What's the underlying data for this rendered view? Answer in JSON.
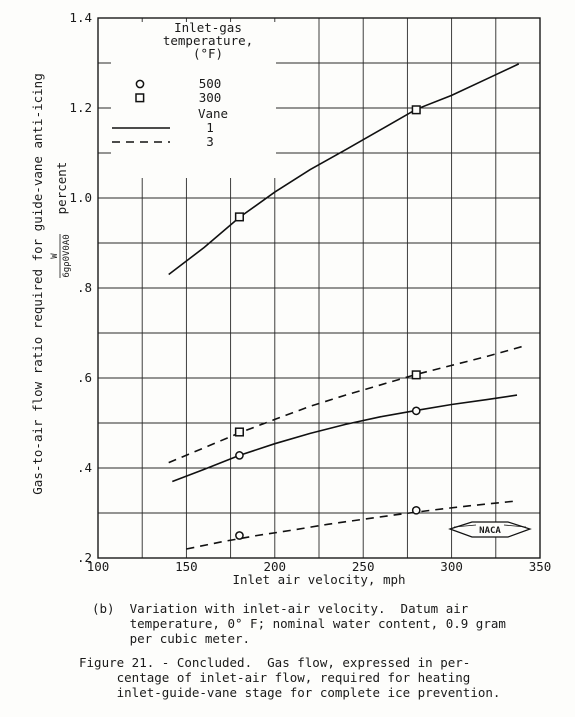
{
  "chart_data": {
    "type": "line",
    "xlabel": "Inlet air velocity, mph",
    "ylabel": "Gas-to-air flow ratio required for guide-vane anti-icing",
    "ylabel_formula": "W/(6gρ0V0A0)",
    "ylabel_unit": "percent",
    "xlim": [
      100,
      350
    ],
    "ylim": [
      0.2,
      1.4
    ],
    "x_ticks": [
      100,
      150,
      200,
      250,
      300,
      350
    ],
    "x_tick_labels": [
      "100",
      "150",
      "200",
      "250",
      "300",
      "350"
    ],
    "y_ticks": [
      0.2,
      0.4,
      0.6,
      0.8,
      1.0,
      1.2,
      1.4
    ],
    "y_tick_labels": [
      ".2",
      ".4",
      ".6",
      ".8",
      "1.0",
      "1.2",
      "1.4"
    ],
    "grid": true,
    "legend": {
      "placement": "top-left",
      "temp_title": [
        "Inlet-gas",
        "temperature,",
        "(°F)"
      ],
      "markers": [
        {
          "symbol": "circle",
          "label": "500"
        },
        {
          "symbol": "square",
          "label": "300"
        }
      ],
      "vane_title": "Vane",
      "lines": [
        {
          "style": "solid",
          "label": "1"
        },
        {
          "style": "dashed",
          "label": "3"
        }
      ]
    },
    "curves": [
      {
        "vane": "1",
        "style": "solid",
        "x": [
          140,
          160,
          180,
          200,
          220,
          240,
          260,
          280,
          300,
          320,
          338
        ],
        "y": [
          0.83,
          0.89,
          0.957,
          1.013,
          1.063,
          1.107,
          1.152,
          1.197,
          1.228,
          1.265,
          1.298
        ]
      },
      {
        "vane": "3",
        "style": "dashed",
        "x": [
          140,
          160,
          180,
          200,
          220,
          240,
          260,
          280,
          300,
          320,
          340
        ],
        "y": [
          0.412,
          0.445,
          0.478,
          0.508,
          0.537,
          0.562,
          0.585,
          0.608,
          0.628,
          0.648,
          0.67
        ]
      },
      {
        "vane": "1",
        "style": "solid",
        "x": [
          142,
          160,
          180,
          200,
          220,
          240,
          260,
          280,
          300,
          320,
          337
        ],
        "y": [
          0.37,
          0.397,
          0.428,
          0.454,
          0.477,
          0.497,
          0.514,
          0.528,
          0.541,
          0.552,
          0.562
        ]
      },
      {
        "vane": "3",
        "style": "dashed",
        "x": [
          150,
          170,
          190,
          210,
          230,
          250,
          270,
          290,
          310,
          335
        ],
        "y": [
          0.22,
          0.236,
          0.25,
          0.262,
          0.275,
          0.286,
          0.297,
          0.307,
          0.316,
          0.326
        ]
      }
    ],
    "points": [
      {
        "symbol": "square",
        "x": 180,
        "y": 0.958
      },
      {
        "symbol": "square",
        "x": 280,
        "y": 1.196
      },
      {
        "symbol": "square",
        "x": 180,
        "y": 0.48
      },
      {
        "symbol": "square",
        "x": 280,
        "y": 0.607
      },
      {
        "symbol": "circle",
        "x": 180,
        "y": 0.428
      },
      {
        "symbol": "circle",
        "x": 280,
        "y": 0.527
      },
      {
        "symbol": "circle",
        "x": 180,
        "y": 0.25
      },
      {
        "symbol": "circle",
        "x": 280,
        "y": 0.306
      }
    ],
    "logo": "NACA"
  },
  "caption_b": [
    "(b)  Variation with inlet-air velocity.  Datum air",
    "     temperature, 0° F; nominal water content, 0.9 gram",
    "     per cubic meter."
  ],
  "figure_caption": [
    "Figure 21. - Concluded.  Gas flow, expressed in per-",
    "     centage of inlet-air flow, required for heating",
    "     inlet-guide-vane stage for complete ice prevention."
  ]
}
